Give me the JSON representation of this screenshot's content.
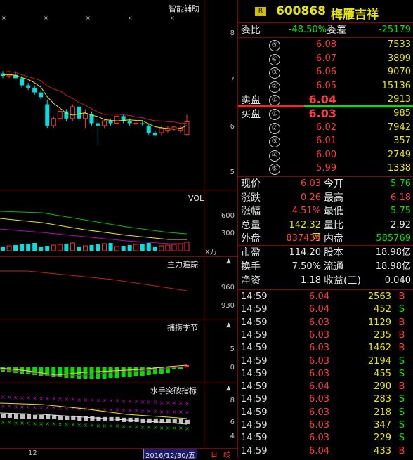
{
  "header": {
    "badge": "R",
    "code": "600868",
    "name": "梅雁吉祥"
  },
  "weibi": {
    "label1": "委比",
    "value1": "-48.50%",
    "label2": "委差",
    "value2": "-25179"
  },
  "sell": [
    {
      "n": "⑤",
      "price": "6.08",
      "vol": "7533"
    },
    {
      "n": "④",
      "price": "6.07",
      "vol": "3899"
    },
    {
      "n": "③",
      "price": "6.06",
      "vol": "9070"
    },
    {
      "n": "②",
      "price": "6.05",
      "vol": "15136"
    },
    {
      "n": "①",
      "price": "6.04",
      "vol": "2913"
    }
  ],
  "buy": [
    {
      "n": "①",
      "price": "6.03",
      "vol": "985"
    },
    {
      "n": "②",
      "price": "6.02",
      "vol": "7942"
    },
    {
      "n": "③",
      "price": "6.01",
      "vol": "357"
    },
    {
      "n": "④",
      "price": "6.00",
      "vol": "2749"
    },
    {
      "n": "⑤",
      "price": "5.99",
      "vol": "1338"
    }
  ],
  "sell_label": "卖盘",
  "buy_label": "买盘",
  "stats": [
    {
      "l1": "现价",
      "v1": "6.03",
      "l2": "今开",
      "v2": "5.76",
      "c1": "red",
      "c2": "green"
    },
    {
      "l1": "涨跌",
      "v1": "0.26",
      "l2": "最高",
      "v2": "6.18",
      "c1": "red",
      "c2": "red"
    },
    {
      "l1": "涨幅",
      "v1": "4.51%",
      "l2": "最低",
      "v2": "5.75",
      "c1": "red",
      "c2": "green"
    },
    {
      "l1": "总量",
      "v1": "142.32万",
      "l2": "量比",
      "v2": "2.92",
      "c1": "yellow",
      "c2": "white"
    },
    {
      "l1": "外盘",
      "v1": "837434",
      "l2": "内盘",
      "v2": "585769",
      "c1": "red",
      "c2": "green"
    }
  ],
  "stats2": [
    {
      "l1": "市盈",
      "v1": "114.20",
      "l2": "股本",
      "v2": "18.98亿"
    },
    {
      "l1": "换手",
      "v1": "7.50%",
      "l2": "流通",
      "v2": "18.98亿"
    },
    {
      "l1": "净资",
      "v1": "1.18",
      "l2": "收益(三)",
      "v2": "0.040"
    }
  ],
  "ticks": [
    {
      "t": "14:59",
      "p": "6.04",
      "v": "2563",
      "s": "B"
    },
    {
      "t": "14:59",
      "p": "6.04",
      "v": "452",
      "s": "S"
    },
    {
      "t": "14:59",
      "p": "6.03",
      "v": "1129",
      "s": "B"
    },
    {
      "t": "14:59",
      "p": "6.03",
      "v": "235",
      "s": "B"
    },
    {
      "t": "14:59",
      "p": "6.03",
      "v": "1462",
      "s": "B"
    },
    {
      "t": "14:59",
      "p": "6.03",
      "v": "2194",
      "s": "S"
    },
    {
      "t": "14:59",
      "p": "6.03",
      "v": "455",
      "s": "S"
    },
    {
      "t": "14:59",
      "p": "6.04",
      "v": "290",
      "s": "B"
    },
    {
      "t": "14:59",
      "p": "6.03",
      "v": "283",
      "s": "S"
    },
    {
      "t": "14:59",
      "p": "6.03",
      "v": "218",
      "s": "S"
    },
    {
      "t": "14:59",
      "p": "6.03",
      "v": "347",
      "s": "S"
    },
    {
      "t": "14:59",
      "p": "6.03",
      "v": "229",
      "s": "S"
    },
    {
      "t": "14:59",
      "p": "6.04",
      "v": "433",
      "s": "B"
    }
  ],
  "chart": {
    "main_title": "智能辅助",
    "main_ticks": [
      "8",
      "7",
      "6",
      "5"
    ],
    "vol_title": "VOL",
    "vol_ticks": [
      "600",
      "300"
    ],
    "vol_unit": "X万",
    "zhuli_title": "主力追踪",
    "zhuli_ticks": [
      "960",
      "930"
    ],
    "buolao_title": "捕捞季节",
    "buolao_ticks": [
      "5",
      "0"
    ],
    "shuishou_title": "水手突破指标",
    "shuishou_ticks": [
      "8",
      "6",
      "4"
    ],
    "month_label": "12",
    "date_label": "2016/12/30/五",
    "period1": "日",
    "period2": "线"
  },
  "chart_data": {
    "type": "candlestick",
    "ylim": [
      4.6,
      8.6
    ],
    "candles": [
      {
        "o": 7.05,
        "h": 7.1,
        "l": 6.95,
        "c": 7.0
      },
      {
        "o": 7.0,
        "h": 7.05,
        "l": 6.95,
        "c": 7.02
      },
      {
        "o": 7.02,
        "h": 7.1,
        "l": 6.95,
        "c": 6.95
      },
      {
        "o": 6.95,
        "h": 7.0,
        "l": 6.75,
        "c": 6.8
      },
      {
        "o": 6.8,
        "h": 6.85,
        "l": 6.7,
        "c": 6.75
      },
      {
        "o": 6.75,
        "h": 6.8,
        "l": 6.6,
        "c": 6.65
      },
      {
        "o": 6.65,
        "h": 6.7,
        "l": 6.5,
        "c": 6.55
      },
      {
        "o": 6.4,
        "h": 6.5,
        "l": 5.9,
        "c": 5.95
      },
      {
        "o": 5.95,
        "h": 6.15,
        "l": 5.9,
        "c": 6.1
      },
      {
        "o": 6.1,
        "h": 6.3,
        "l": 6.05,
        "c": 6.25
      },
      {
        "o": 6.25,
        "h": 6.3,
        "l": 6.05,
        "c": 6.1
      },
      {
        "o": 6.1,
        "h": 6.4,
        "l": 6.05,
        "c": 6.35
      },
      {
        "o": 6.35,
        "h": 6.4,
        "l": 6.05,
        "c": 6.1
      },
      {
        "o": 6.1,
        "h": 6.3,
        "l": 5.9,
        "c": 6.2
      },
      {
        "o": 6.2,
        "h": 6.25,
        "l": 5.95,
        "c": 6.0
      },
      {
        "o": 6.0,
        "h": 6.1,
        "l": 5.55,
        "c": 5.95
      },
      {
        "o": 5.95,
        "h": 6.1,
        "l": 5.9,
        "c": 6.05
      },
      {
        "o": 6.05,
        "h": 6.1,
        "l": 5.95,
        "c": 6.0
      },
      {
        "o": 6.0,
        "h": 6.2,
        "l": 5.95,
        "c": 6.15
      },
      {
        "o": 6.15,
        "h": 6.2,
        "l": 6.0,
        "c": 6.05
      },
      {
        "o": 6.05,
        "h": 6.1,
        "l": 5.95,
        "c": 6.0
      },
      {
        "o": 6.0,
        "h": 6.05,
        "l": 5.95,
        "c": 6.0
      },
      {
        "o": 6.0,
        "h": 6.05,
        "l": 5.95,
        "c": 5.98
      },
      {
        "o": 5.95,
        "h": 6.0,
        "l": 5.75,
        "c": 5.8
      },
      {
        "o": 5.8,
        "h": 5.85,
        "l": 5.72,
        "c": 5.75
      },
      {
        "o": 5.8,
        "h": 5.95,
        "l": 5.75,
        "c": 5.9
      },
      {
        "o": 5.85,
        "h": 5.95,
        "l": 5.8,
        "c": 5.9
      },
      {
        "o": 5.88,
        "h": 5.95,
        "l": 5.85,
        "c": 5.92
      },
      {
        "o": 5.85,
        "h": 5.95,
        "l": 5.8,
        "c": 5.9
      },
      {
        "o": 5.76,
        "h": 6.18,
        "l": 5.75,
        "c": 6.03
      }
    ]
  }
}
